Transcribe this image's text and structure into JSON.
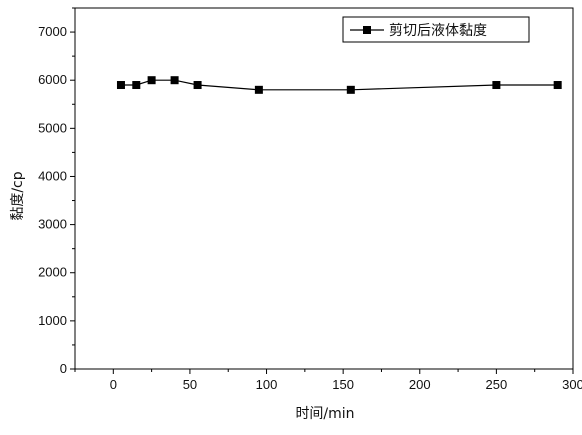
{
  "chart_data": {
    "type": "line",
    "xlabel": "时间/min",
    "ylabel": "黏度/cp",
    "xlim": [
      -25,
      300
    ],
    "ylim": [
      0,
      7500
    ],
    "x_ticks": [
      "0",
      "50",
      "100",
      "150",
      "200",
      "250",
      "300"
    ],
    "y_ticks": [
      "0",
      "1000",
      "2000",
      "3000",
      "4000",
      "5000",
      "6000",
      "7000"
    ],
    "legend_position": "top-right",
    "grid": false,
    "series": [
      {
        "name": "剪切后液体黏度",
        "marker": "square",
        "color": "#000000",
        "x": [
          5,
          15,
          25,
          40,
          55,
          95,
          155,
          250,
          290
        ],
        "y": [
          5900,
          5900,
          6000,
          6000,
          5900,
          5800,
          5800,
          5900,
          5900
        ]
      }
    ]
  }
}
